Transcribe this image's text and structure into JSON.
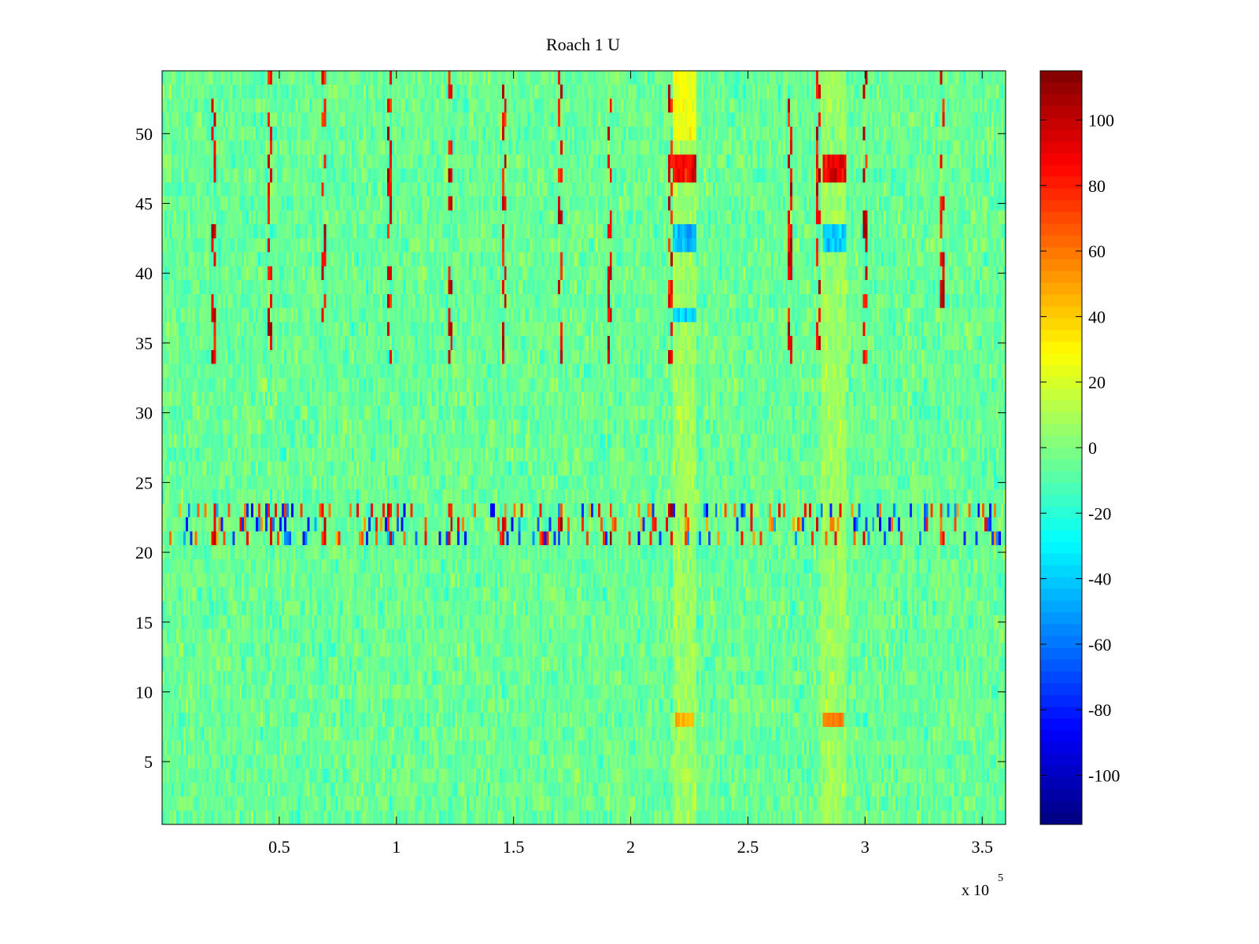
{
  "chart_data": {
    "type": "heatmap",
    "title": "Roach 1 U",
    "xlabel": "",
    "ylabel": "",
    "x_exponent_label": "x 10",
    "x_exponent_power": "5",
    "xlim": [
      0,
      360000
    ],
    "ylim": [
      0.5,
      54.5
    ],
    "x_ticks": [
      {
        "value": 50000,
        "label": "0.5"
      },
      {
        "value": 100000,
        "label": "1"
      },
      {
        "value": 150000,
        "label": "1.5"
      },
      {
        "value": 200000,
        "label": "2"
      },
      {
        "value": 250000,
        "label": "2.5"
      },
      {
        "value": 300000,
        "label": "3"
      },
      {
        "value": 350000,
        "label": "3.5"
      }
    ],
    "y_ticks": [
      5,
      10,
      15,
      20,
      25,
      30,
      35,
      40,
      45,
      50
    ],
    "rows": 54,
    "columns": 360,
    "colorbar": {
      "colormap": "jet",
      "range": [
        -115,
        115
      ],
      "ticks": [
        -100,
        -80,
        -60,
        -40,
        -20,
        0,
        20,
        40,
        60,
        80,
        100
      ]
    },
    "baseline_value": -5,
    "features": [
      {
        "type": "band",
        "x_range": [
          218000,
          228000
        ],
        "y_range": [
          0.5,
          54.5
        ],
        "value": 18
      },
      {
        "type": "band",
        "x_range": [
          281000,
          292000
        ],
        "y_range": [
          0.5,
          54.5
        ],
        "value": 18
      },
      {
        "type": "block",
        "x_range": [
          218000,
          228000
        ],
        "y_range": [
          46.5,
          48.5
        ],
        "value": 85
      },
      {
        "type": "block",
        "x_range": [
          282000,
          292000
        ],
        "y_range": [
          46.5,
          48.5
        ],
        "value": 90
      },
      {
        "type": "block",
        "x_range": [
          218000,
          228000
        ],
        "y_range": [
          41.5,
          43.5
        ],
        "value": -45
      },
      {
        "type": "block",
        "x_range": [
          282000,
          292000
        ],
        "y_range": [
          41.5,
          43.5
        ],
        "value": -40
      },
      {
        "type": "block",
        "x_range": [
          219000,
          227000
        ],
        "y_range": [
          7.5,
          8.5
        ],
        "value": 45
      },
      {
        "type": "block",
        "x_range": [
          282000,
          291000
        ],
        "y_range": [
          7.5,
          8.5
        ],
        "value": 55
      },
      {
        "type": "block",
        "x_range": [
          218000,
          228000
        ],
        "y_range": [
          36.5,
          37.5
        ],
        "value": -35
      },
      {
        "type": "block",
        "x_range": [
          218000,
          228000
        ],
        "y_range": [
          0.5,
          54.5
        ],
        "value": 25,
        "note": "top rows"
      },
      {
        "type": "noisy_band",
        "x_range": [
          0,
          360000
        ],
        "y_range": [
          20.5,
          23.5
        ],
        "amplitude": 90
      }
    ],
    "spike_columns_x": [
      22000,
      46000,
      69000,
      97000,
      123000,
      146000,
      170000,
      191000,
      217000,
      268000,
      280000,
      300000,
      333000
    ]
  }
}
